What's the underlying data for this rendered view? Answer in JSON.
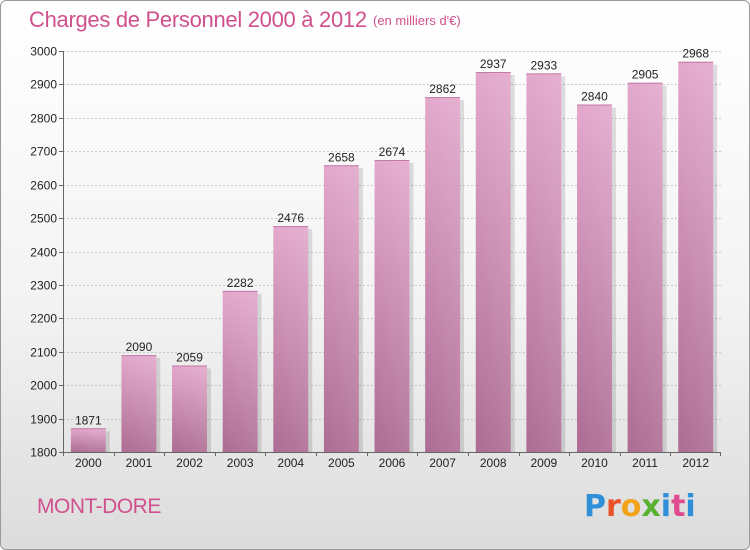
{
  "header": {
    "title": "Charges de Personnel 2000 à 2012",
    "subtitle": "(en milliers d'€)"
  },
  "footer": {
    "commune": "MONT-DORE",
    "logo_text": [
      "P",
      "r",
      "o",
      "x",
      "i",
      "t",
      "i"
    ],
    "logo_colors": [
      "#2f8fd8",
      "#e8532a",
      "#f3a21c",
      "#5ab031",
      "#2f8fd8",
      "#e04a8f",
      "#2f8fd8"
    ]
  },
  "chart_data": {
    "type": "bar",
    "title": "Charges de Personnel 2000 à 2012",
    "subtitle": "(en milliers d'€)",
    "xlabel": "",
    "ylabel": "",
    "categories": [
      "2000",
      "2001",
      "2002",
      "2003",
      "2004",
      "2005",
      "2006",
      "2007",
      "2008",
      "2009",
      "2010",
      "2011",
      "2012"
    ],
    "values": [
      1871,
      2090,
      2059,
      2282,
      2476,
      2658,
      2674,
      2862,
      2937,
      2933,
      2840,
      2905,
      2968
    ],
    "ylim": [
      1800,
      3000
    ],
    "yticks": [
      1800,
      1900,
      2000,
      2100,
      2200,
      2300,
      2400,
      2500,
      2600,
      2700,
      2800,
      2900,
      3000
    ],
    "grid": true,
    "bar_color_top": "#e3a8cc",
    "bar_color_bottom": "#ad6c93",
    "title_color": "#d0508d"
  }
}
